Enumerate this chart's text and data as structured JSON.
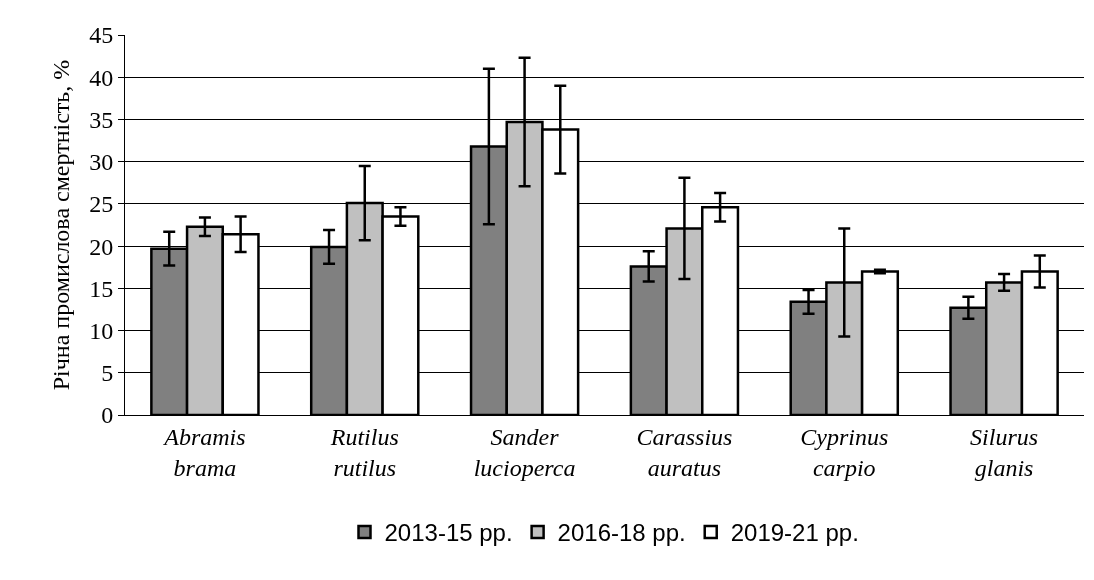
{
  "chart_data": {
    "type": "bar",
    "ylabel": "Річна промислова смертність, %",
    "categories": [
      "Abramis brama",
      "Rutilus rutilus",
      "Sander lucioperca",
      "Carassius auratus",
      "Cyprinus carpio",
      "Silurus glanis"
    ],
    "series": [
      {
        "name": "2013-15 рр.",
        "color": "#808080",
        "values": [
          19.7,
          19.9,
          31.8,
          17.6,
          13.4,
          12.7
        ],
        "errors": [
          2.0,
          2.0,
          9.2,
          1.8,
          1.4,
          1.3
        ]
      },
      {
        "name": "2016-18 рр.",
        "color": "#c0c0c0",
        "values": [
          22.3,
          25.1,
          34.7,
          22.1,
          15.7,
          15.7
        ],
        "errors": [
          1.1,
          4.4,
          7.6,
          6.0,
          6.4,
          1.0
        ]
      },
      {
        "name": "2019-21 рр.",
        "color": "#ffffff",
        "values": [
          21.4,
          23.5,
          33.8,
          24.6,
          17.0,
          17.0
        ],
        "errors": [
          2.1,
          1.1,
          5.2,
          1.7,
          0.2,
          1.9
        ]
      }
    ],
    "ylim": [
      0,
      45
    ],
    "yticks": [
      0,
      5,
      10,
      15,
      20,
      25,
      30,
      35,
      40,
      45
    ],
    "grid": "y",
    "legend": "bottom"
  }
}
